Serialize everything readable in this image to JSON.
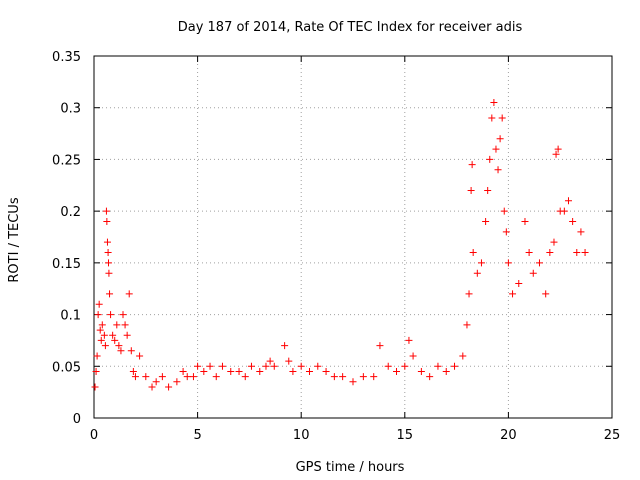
{
  "chart_data": {
    "type": "scatter",
    "title": "Day 187 of 2014, Rate Of TEC Index for receiver adis",
    "xlabel": "GPS time / hours",
    "ylabel": "ROTI / TECUs",
    "xlim": [
      0,
      25
    ],
    "ylim": [
      0,
      0.35
    ],
    "xticks": [
      0,
      5,
      10,
      15,
      20,
      25
    ],
    "yticks": [
      0,
      0.05,
      0.1,
      0.15,
      0.2,
      0.25,
      0.3,
      0.35
    ],
    "xtick_labels": [
      "0",
      "5",
      "10",
      "15",
      "20",
      "25"
    ],
    "ytick_labels": [
      "0",
      "0.05",
      "0.1",
      "0.15",
      "0.2",
      "0.25",
      "0.3",
      "0.35"
    ],
    "grid": true,
    "marker": "+",
    "color": "#ff0000",
    "series": [
      {
        "name": "ROTI",
        "points": [
          [
            0.05,
            0.03
          ],
          [
            0.1,
            0.045
          ],
          [
            0.15,
            0.06
          ],
          [
            0.2,
            0.1
          ],
          [
            0.25,
            0.11
          ],
          [
            0.3,
            0.085
          ],
          [
            0.35,
            0.075
          ],
          [
            0.4,
            0.09
          ],
          [
            0.5,
            0.08
          ],
          [
            0.55,
            0.07
          ],
          [
            0.6,
            0.2
          ],
          [
            0.62,
            0.19
          ],
          [
            0.65,
            0.17
          ],
          [
            0.68,
            0.16
          ],
          [
            0.7,
            0.15
          ],
          [
            0.72,
            0.14
          ],
          [
            0.75,
            0.12
          ],
          [
            0.8,
            0.1
          ],
          [
            0.9,
            0.08
          ],
          [
            1.0,
            0.075
          ],
          [
            1.1,
            0.09
          ],
          [
            1.2,
            0.07
          ],
          [
            1.3,
            0.065
          ],
          [
            1.4,
            0.1
          ],
          [
            1.5,
            0.09
          ],
          [
            1.6,
            0.08
          ],
          [
            1.7,
            0.12
          ],
          [
            1.8,
            0.065
          ],
          [
            1.9,
            0.045
          ],
          [
            2.0,
            0.04
          ],
          [
            2.2,
            0.06
          ],
          [
            2.5,
            0.04
          ],
          [
            2.8,
            0.03
          ],
          [
            3.0,
            0.035
          ],
          [
            3.3,
            0.04
          ],
          [
            3.6,
            0.03
          ],
          [
            4.0,
            0.035
          ],
          [
            4.3,
            0.045
          ],
          [
            4.5,
            0.04
          ],
          [
            4.8,
            0.04
          ],
          [
            5.0,
            0.05
          ],
          [
            5.3,
            0.045
          ],
          [
            5.6,
            0.05
          ],
          [
            5.9,
            0.04
          ],
          [
            6.2,
            0.05
          ],
          [
            6.6,
            0.045
          ],
          [
            7.0,
            0.045
          ],
          [
            7.3,
            0.04
          ],
          [
            7.6,
            0.05
          ],
          [
            8.0,
            0.045
          ],
          [
            8.3,
            0.05
          ],
          [
            8.5,
            0.055
          ],
          [
            8.7,
            0.05
          ],
          [
            9.2,
            0.07
          ],
          [
            9.4,
            0.055
          ],
          [
            9.6,
            0.045
          ],
          [
            10.0,
            0.05
          ],
          [
            10.4,
            0.045
          ],
          [
            10.8,
            0.05
          ],
          [
            11.2,
            0.045
          ],
          [
            11.6,
            0.04
          ],
          [
            12.0,
            0.04
          ],
          [
            12.5,
            0.035
          ],
          [
            13.0,
            0.04
          ],
          [
            13.5,
            0.04
          ],
          [
            13.8,
            0.07
          ],
          [
            14.2,
            0.05
          ],
          [
            14.6,
            0.045
          ],
          [
            15.0,
            0.05
          ],
          [
            15.2,
            0.075
          ],
          [
            15.4,
            0.06
          ],
          [
            15.8,
            0.045
          ],
          [
            16.2,
            0.04
          ],
          [
            16.6,
            0.05
          ],
          [
            17.0,
            0.045
          ],
          [
            17.4,
            0.05
          ],
          [
            17.8,
            0.06
          ],
          [
            18.0,
            0.09
          ],
          [
            18.1,
            0.12
          ],
          [
            18.2,
            0.22
          ],
          [
            18.25,
            0.245
          ],
          [
            18.3,
            0.16
          ],
          [
            18.5,
            0.14
          ],
          [
            18.7,
            0.15
          ],
          [
            18.9,
            0.19
          ],
          [
            19.0,
            0.22
          ],
          [
            19.1,
            0.25
          ],
          [
            19.2,
            0.29
          ],
          [
            19.3,
            0.305
          ],
          [
            19.4,
            0.26
          ],
          [
            19.5,
            0.24
          ],
          [
            19.6,
            0.27
          ],
          [
            19.7,
            0.29
          ],
          [
            19.8,
            0.2
          ],
          [
            19.9,
            0.18
          ],
          [
            20.0,
            0.15
          ],
          [
            20.2,
            0.12
          ],
          [
            20.5,
            0.13
          ],
          [
            20.8,
            0.19
          ],
          [
            21.0,
            0.16
          ],
          [
            21.2,
            0.14
          ],
          [
            21.5,
            0.15
          ],
          [
            21.8,
            0.12
          ],
          [
            22.0,
            0.16
          ],
          [
            22.2,
            0.17
          ],
          [
            22.3,
            0.255
          ],
          [
            22.4,
            0.26
          ],
          [
            22.5,
            0.2
          ],
          [
            22.7,
            0.2
          ],
          [
            22.9,
            0.21
          ],
          [
            23.1,
            0.19
          ],
          [
            23.3,
            0.16
          ],
          [
            23.5,
            0.18
          ],
          [
            23.7,
            0.16
          ]
        ]
      }
    ]
  }
}
